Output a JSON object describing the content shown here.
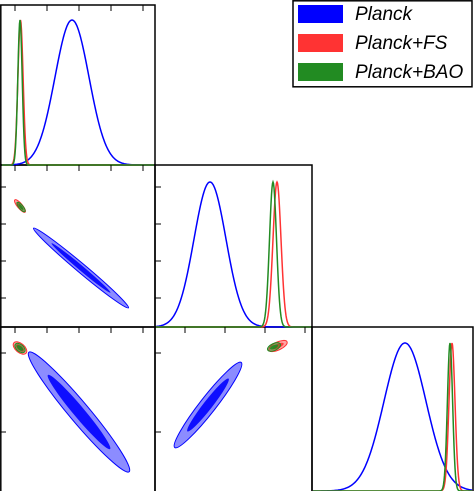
{
  "chart_data": {
    "type": "triangle",
    "series": [
      {
        "name": "Planck",
        "color": "#0000ff"
      },
      {
        "name": "Planck+FS",
        "color": "#ff3333"
      },
      {
        "name": "Planck+BAO",
        "color": "#228b22"
      }
    ]
  }
}
